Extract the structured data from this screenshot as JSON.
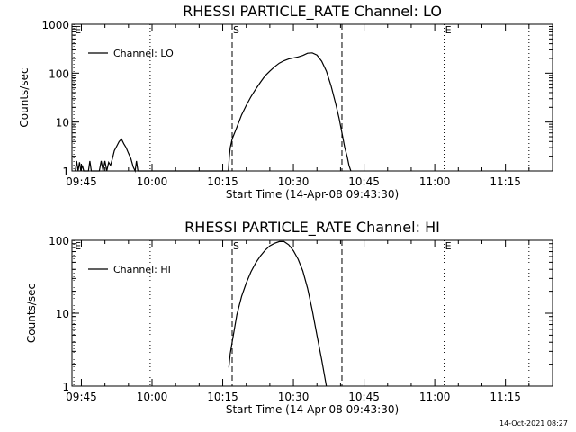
{
  "footer": {
    "timestamp": "14-Oct-2021 08:27"
  },
  "chart_data": [
    {
      "type": "line",
      "title": "RHESSI PARTICLE_RATE Channel: LO",
      "xlabel": "Start Time (14-Apr-08 09:43:30)",
      "ylabel": "Counts/sec",
      "xscale": "time-minutes",
      "yscale": "log",
      "xlim": [
        -2,
        100
      ],
      "ylim": [
        1,
        1000
      ],
      "xticks": [
        {
          "t": 0,
          "label": "09:45"
        },
        {
          "t": 15,
          "label": "10:00"
        },
        {
          "t": 30,
          "label": "10:15"
        },
        {
          "t": 45,
          "label": "10:30"
        },
        {
          "t": 60,
          "label": "10:45"
        },
        {
          "t": 75,
          "label": "11:00"
        },
        {
          "t": 90,
          "label": "11:15"
        }
      ],
      "yticks": [
        {
          "v": 1,
          "label": "1"
        },
        {
          "v": 10,
          "label": "10"
        },
        {
          "v": 100,
          "label": "100"
        },
        {
          "v": 1000,
          "label": "1000"
        }
      ],
      "legend": {
        "label": "Channel: LO",
        "position": "top-left"
      },
      "markers": [
        {
          "t": -1.6,
          "style": "dotted",
          "label": "E"
        },
        {
          "t": 14.6,
          "style": "dotted",
          "label": ""
        },
        {
          "t": 32.0,
          "style": "dashed",
          "label": "S"
        },
        {
          "t": 55.3,
          "style": "dashed",
          "label": ""
        },
        {
          "t": 77.0,
          "style": "dotted",
          "label": "E"
        },
        {
          "t": 95.0,
          "style": "dotted",
          "label": ""
        }
      ],
      "series": [
        {
          "name": "Channel: LO",
          "points": [
            [
              -1.3,
              1
            ],
            [
              -1.0,
              1.6
            ],
            [
              -0.7,
              1
            ],
            [
              -0.4,
              1.5
            ],
            [
              -0.1,
              1
            ],
            [
              0.2,
              1.3
            ],
            [
              0.5,
              1
            ],
            [
              1.5,
              1
            ],
            [
              1.8,
              1.6
            ],
            [
              2.1,
              1
            ],
            [
              3.8,
              1
            ],
            [
              4.2,
              1.6
            ],
            [
              4.6,
              1
            ],
            [
              5.0,
              1.6
            ],
            [
              5.4,
              1
            ],
            [
              5.8,
              1.5
            ],
            [
              6.2,
              1.3
            ],
            [
              6.6,
              1.8
            ],
            [
              7.0,
              2.6
            ],
            [
              7.5,
              3.2
            ],
            [
              8.0,
              4.0
            ],
            [
              8.5,
              4.5
            ],
            [
              9.0,
              3.6
            ],
            [
              9.5,
              3.0
            ],
            [
              10.0,
              2.3
            ],
            [
              10.5,
              1.8
            ],
            [
              11.0,
              1.2
            ],
            [
              11.4,
              1
            ],
            [
              11.7,
              1.6
            ],
            [
              12.0,
              1
            ],
            [
              31.2,
              1
            ],
            [
              31.4,
              2
            ],
            [
              31.6,
              3
            ],
            [
              32.0,
              4.5
            ],
            [
              33.0,
              7.8
            ],
            [
              34.0,
              14
            ],
            [
              35.0,
              22
            ],
            [
              36.0,
              33
            ],
            [
              37.0,
              47
            ],
            [
              38.0,
              65
            ],
            [
              39.0,
              88
            ],
            [
              40.0,
              110
            ],
            [
              41.0,
              135
            ],
            [
              42.0,
              160
            ],
            [
              43.0,
              180
            ],
            [
              44.0,
              195
            ],
            [
              45.0,
              205
            ],
            [
              46.0,
              215
            ],
            [
              47.0,
              230
            ],
            [
              48.0,
              255
            ],
            [
              49.0,
              260
            ],
            [
              50.0,
              235
            ],
            [
              51.0,
              175
            ],
            [
              52.0,
              110
            ],
            [
              53.0,
              55
            ],
            [
              54.0,
              23
            ],
            [
              54.7,
              12
            ],
            [
              55.3,
              6
            ],
            [
              55.9,
              3
            ],
            [
              56.4,
              2
            ],
            [
              56.8,
              1.3
            ],
            [
              57.2,
              1
            ]
          ]
        }
      ]
    },
    {
      "type": "line",
      "title": "RHESSI PARTICLE_RATE Channel: HI",
      "xlabel": "Start Time (14-Apr-08 09:43:30)",
      "ylabel": "Counts/sec",
      "xscale": "time-minutes",
      "yscale": "log",
      "xlim": [
        -2,
        100
      ],
      "ylim": [
        1,
        100
      ],
      "xticks": [
        {
          "t": 0,
          "label": "09:45"
        },
        {
          "t": 15,
          "label": "10:00"
        },
        {
          "t": 30,
          "label": "10:15"
        },
        {
          "t": 45,
          "label": "10:30"
        },
        {
          "t": 60,
          "label": "10:45"
        },
        {
          "t": 75,
          "label": "11:00"
        },
        {
          "t": 90,
          "label": "11:15"
        }
      ],
      "yticks": [
        {
          "v": 1,
          "label": "1"
        },
        {
          "v": 10,
          "label": "10"
        },
        {
          "v": 100,
          "label": "100"
        }
      ],
      "legend": {
        "label": "Channel: HI",
        "position": "top-left"
      },
      "markers": [
        {
          "t": -1.6,
          "style": "dotted",
          "label": "E"
        },
        {
          "t": 14.6,
          "style": "dotted",
          "label": ""
        },
        {
          "t": 32.0,
          "style": "dashed",
          "label": "S"
        },
        {
          "t": 55.3,
          "style": "dashed",
          "label": ""
        },
        {
          "t": 77.0,
          "style": "dotted",
          "label": "E"
        },
        {
          "t": 95.0,
          "style": "dotted",
          "label": ""
        }
      ],
      "series": [
        {
          "name": "Channel: HI",
          "points": [
            [
              31.3,
              1.8
            ],
            [
              31.6,
              2.8
            ],
            [
              32.0,
              4
            ],
            [
              33.0,
              9.5
            ],
            [
              34.0,
              17
            ],
            [
              35.0,
              26
            ],
            [
              36.0,
              37
            ],
            [
              37.0,
              49
            ],
            [
              38.0,
              61
            ],
            [
              39.0,
              73
            ],
            [
              40.0,
              84
            ],
            [
              41.0,
              91
            ],
            [
              42.0,
              96
            ],
            [
              43.0,
              96
            ],
            [
              44.0,
              87
            ],
            [
              45.0,
              72
            ],
            [
              46.0,
              55
            ],
            [
              47.0,
              38
            ],
            [
              48.0,
              22
            ],
            [
              49.0,
              11
            ],
            [
              50.0,
              5
            ],
            [
              51.0,
              2.3
            ],
            [
              51.6,
              1.4
            ],
            [
              52.0,
              1
            ]
          ]
        }
      ]
    }
  ]
}
